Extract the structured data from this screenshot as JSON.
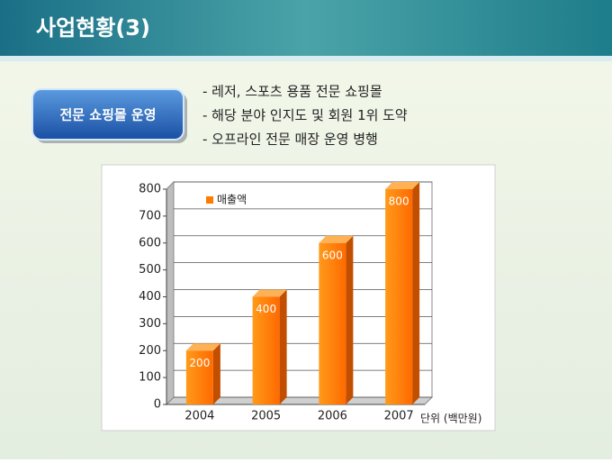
{
  "slide_title": "사업현황(3)",
  "badge": "전문 쇼핑몰 운영",
  "bullets": [
    "- 레저, 스포츠 용품 전문 쇼핑몰",
    "- 해당 분야 인지도 및 회원 1위 도약",
    "- 오프라인 전문 매장 운영 병행"
  ],
  "chart_data": {
    "type": "bar",
    "categories": [
      "2004",
      "2005",
      "2006",
      "2007"
    ],
    "series": [
      {
        "name": "매출액",
        "color": "#ff7a00",
        "values": [
          200,
          400,
          600,
          800
        ]
      }
    ],
    "ylim": [
      0,
      800
    ],
    "yticks": [
      0,
      100,
      200,
      300,
      400,
      500,
      600,
      700,
      800
    ],
    "grid": true,
    "legend": "top-left",
    "unit_label": "단위 (백만원)"
  }
}
